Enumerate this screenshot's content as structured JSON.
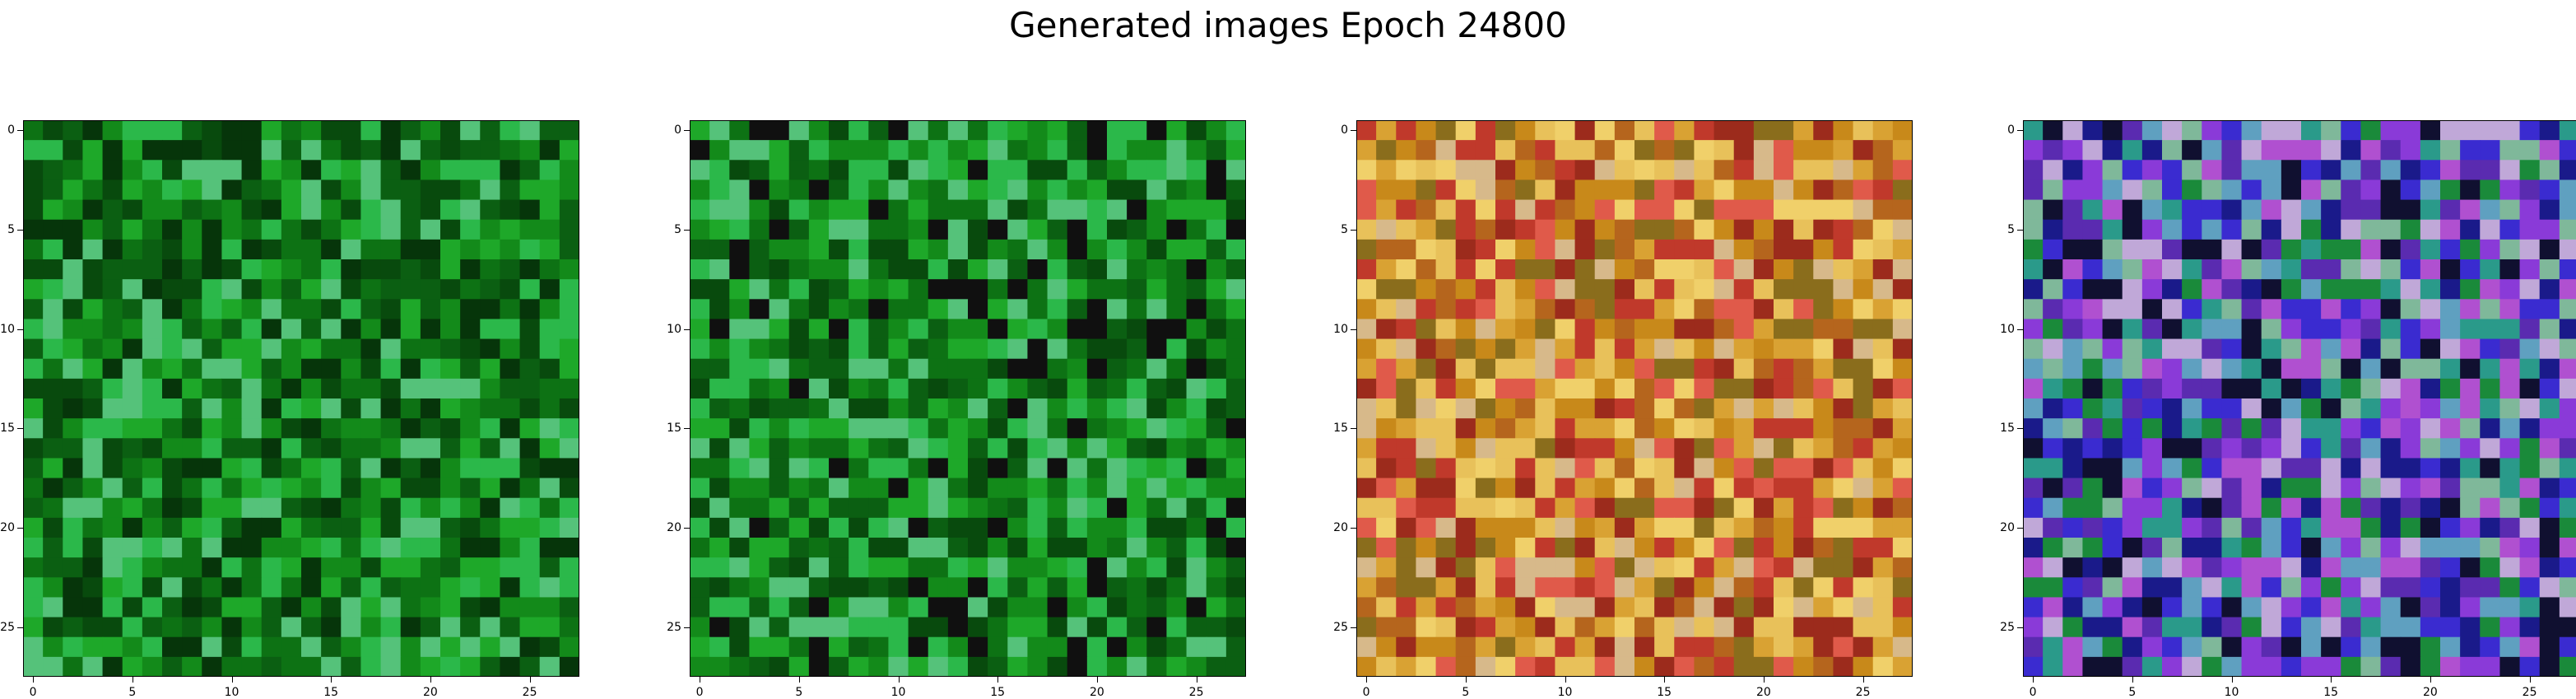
{
  "figure": {
    "title": "Generated images Epoch 24800"
  },
  "chart_data": {
    "type": "heatmap",
    "title": "Generated images Epoch 24800",
    "grid": false,
    "panels": [
      {
        "name": "",
        "dominant_hue": "green",
        "palette": [
          "#0b5f12",
          "#138a1a",
          "#0d7214",
          "#1ea829",
          "#084a0d",
          "#2bb84a",
          "#06350a",
          "#55c27a"
        ],
        "x_range": [
          0,
          27
        ],
        "y_range": [
          0,
          27
        ],
        "xticks": [
          "0",
          "5",
          "10",
          "15",
          "20",
          "25"
        ],
        "yticks": [
          "0",
          "5",
          "10",
          "15",
          "20",
          "25"
        ]
      },
      {
        "name": "",
        "dominant_hue": "green",
        "palette": [
          "#138a1a",
          "#0d7214",
          "#1ea829",
          "#0b5f12",
          "#2bb84a",
          "#084a0d",
          "#55c27a",
          "#101010"
        ],
        "x_range": [
          0,
          27
        ],
        "y_range": [
          0,
          27
        ],
        "xticks": [
          "0",
          "5",
          "10",
          "15",
          "20",
          "25"
        ],
        "yticks": [
          "0",
          "5",
          "10",
          "15",
          "20",
          "25"
        ]
      },
      {
        "name": "",
        "dominant_hue": "orange",
        "palette": [
          "#c8891a",
          "#d9a233",
          "#b5651d",
          "#e8c15a",
          "#c0392b",
          "#e05a4a",
          "#8a6d1c",
          "#d7b98a",
          "#9c2b1c",
          "#f0d06a"
        ],
        "x_range": [
          0,
          27
        ],
        "y_range": [
          0,
          27
        ],
        "xticks": [
          "0",
          "5",
          "10",
          "15",
          "20",
          "25"
        ],
        "yticks": [
          "0",
          "5",
          "10",
          "15",
          "20",
          "25"
        ]
      },
      {
        "name": "",
        "dominant_hue": "blue-purple",
        "palette": [
          "#3a2bd0",
          "#5a2bb0",
          "#1a1a8a",
          "#8a3ad8",
          "#101030",
          "#2a9a8a",
          "#7fb89a",
          "#c0a8d8",
          "#1a8a3a",
          "#5fa0c0",
          "#b050d0"
        ],
        "x_range": [
          0,
          27
        ],
        "y_range": [
          0,
          27
        ],
        "xticks": [
          "0",
          "5",
          "10",
          "15",
          "20",
          "25"
        ],
        "yticks": [
          "0",
          "5",
          "10",
          "15",
          "20",
          "25"
        ]
      }
    ]
  }
}
